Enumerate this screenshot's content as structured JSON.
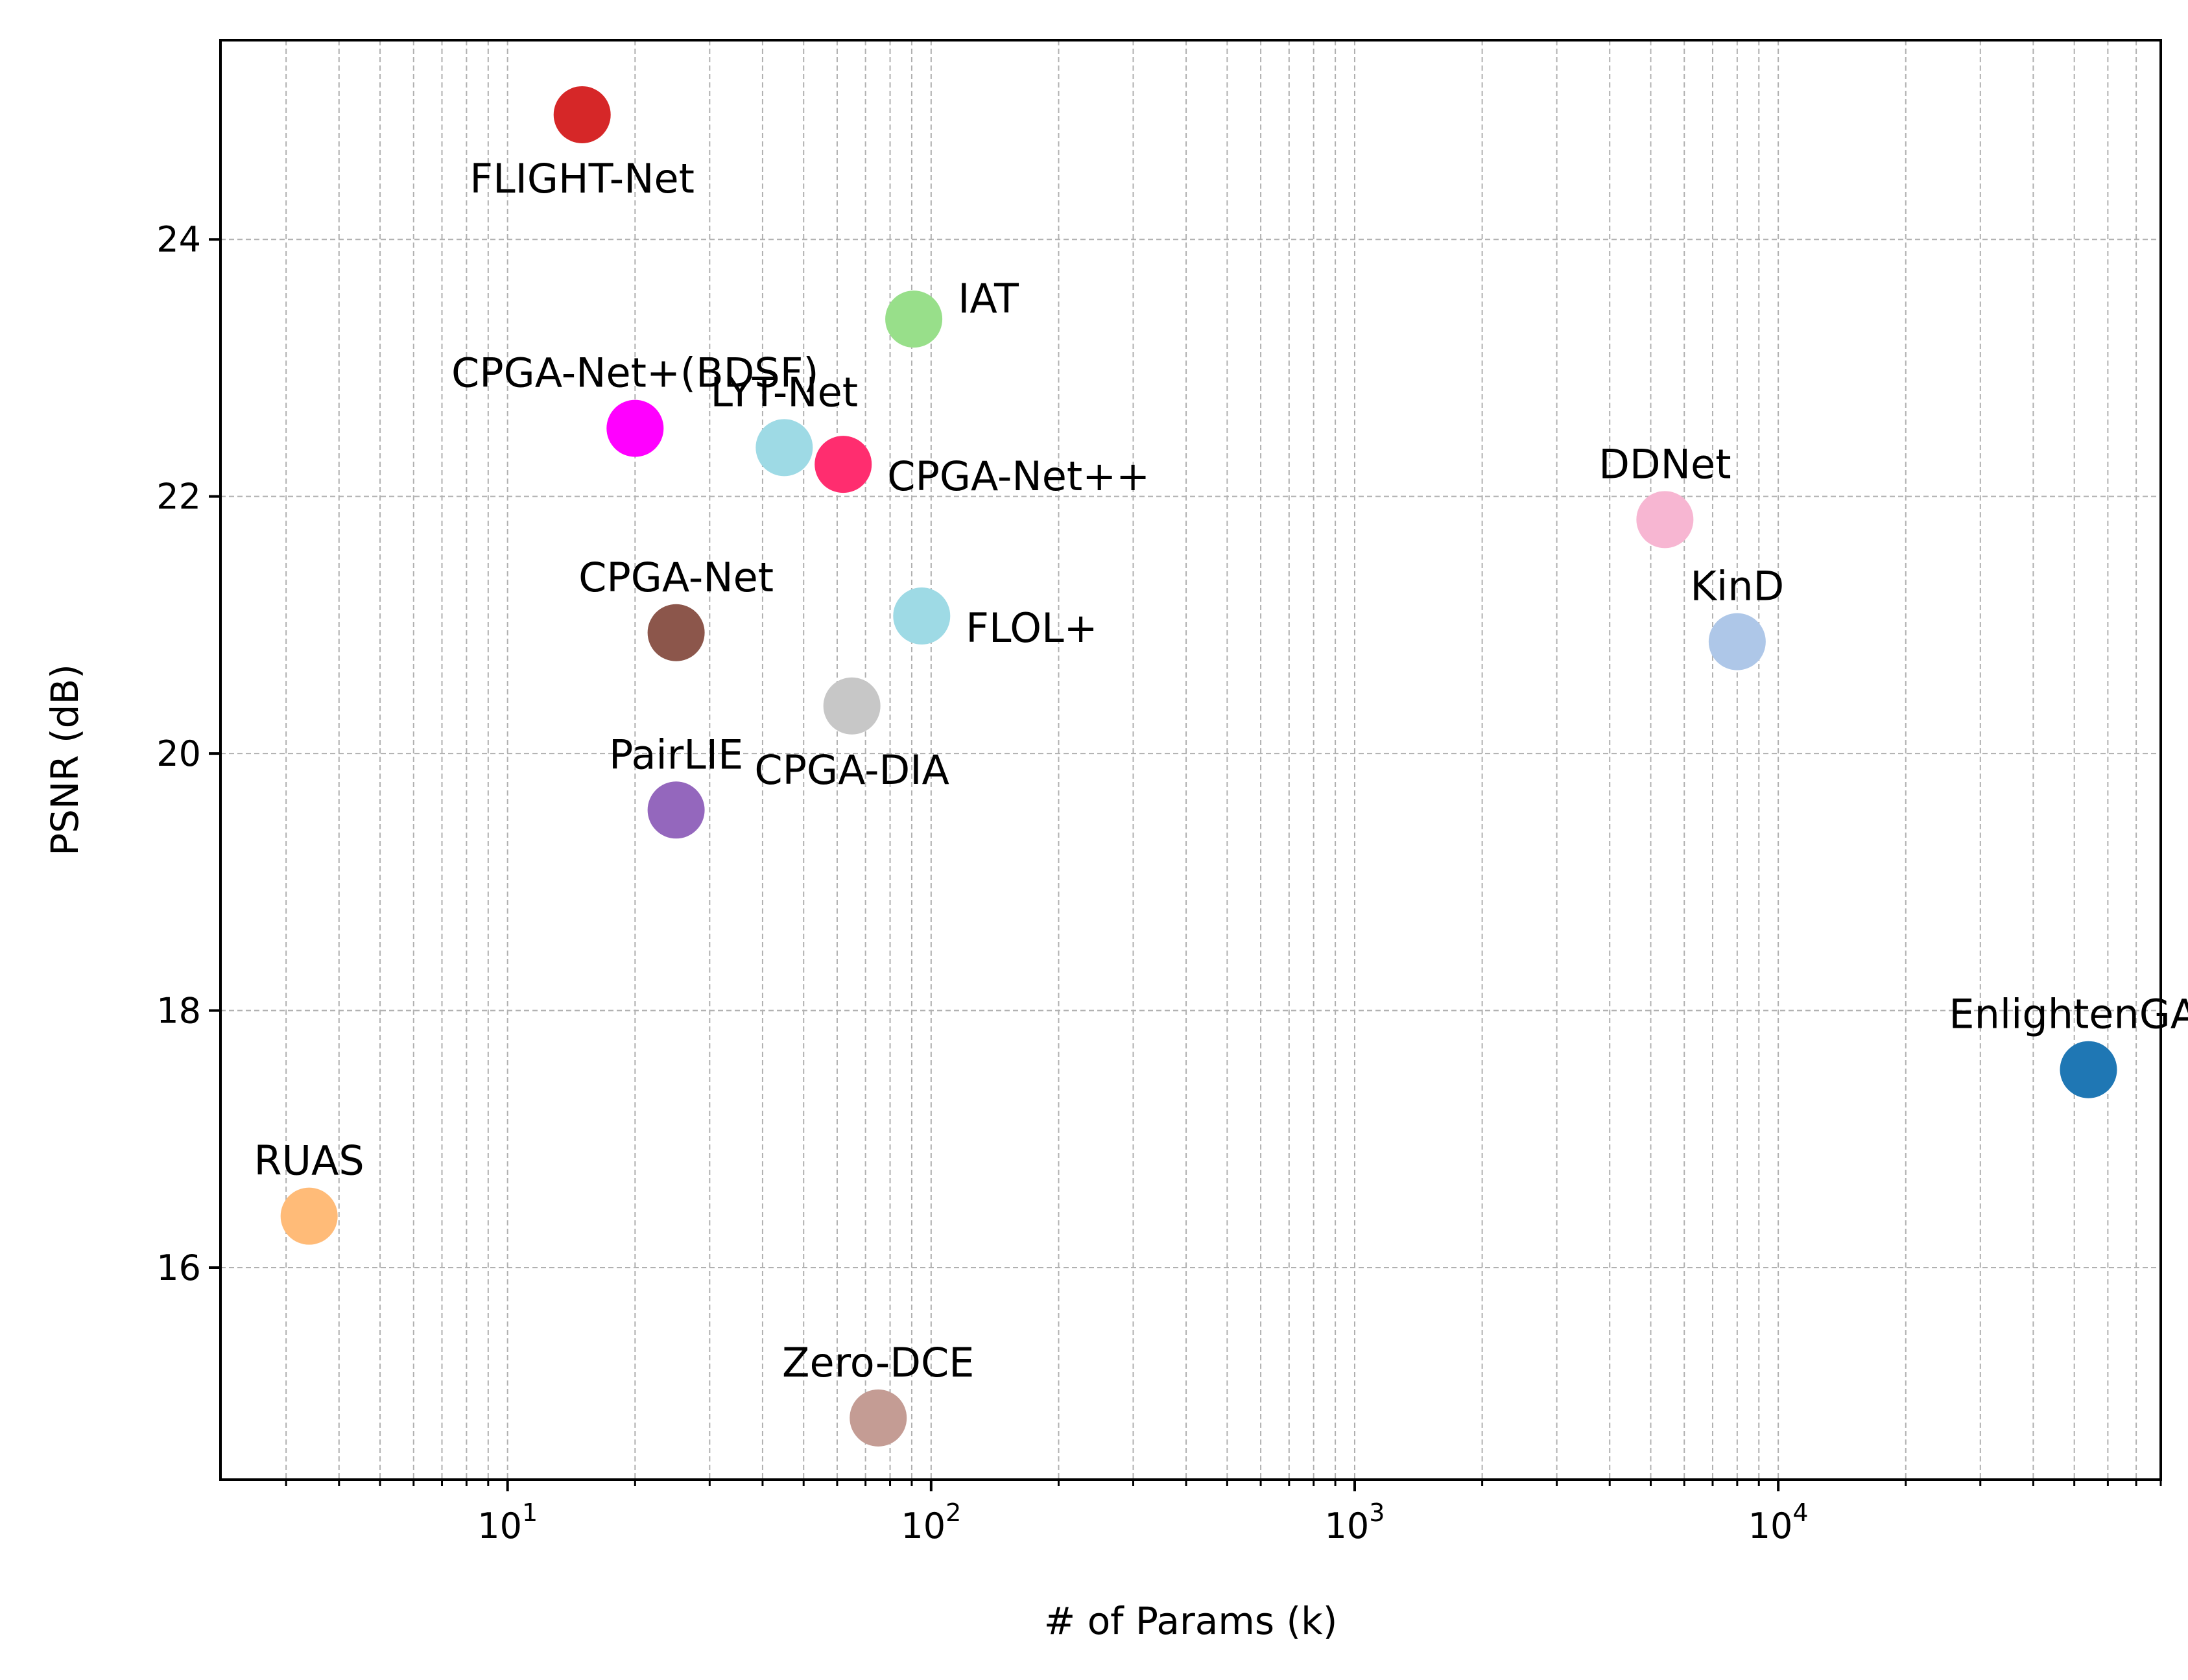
{
  "chart_data": {
    "type": "scatter",
    "title": "",
    "xlabel": "# of Params (k)",
    "ylabel": "PSNR (dB)",
    "xscale": "log",
    "xlim": [
      2.1,
      80000
    ],
    "ylim": [
      14.35,
      25.55
    ],
    "grid": true,
    "x_ticks": [
      {
        "base": "10",
        "exp": "1",
        "value": 10
      },
      {
        "base": "10",
        "exp": "2",
        "value": 100
      },
      {
        "base": "10",
        "exp": "3",
        "value": 1000
      },
      {
        "base": "10",
        "exp": "4",
        "value": 10000
      }
    ],
    "y_ticks": [
      {
        "label": "16",
        "value": 16
      },
      {
        "label": "18",
        "value": 18
      },
      {
        "label": "20",
        "value": 20
      },
      {
        "label": "22",
        "value": 22
      },
      {
        "label": "24",
        "value": 24
      }
    ],
    "points": [
      {
        "label": "FLIGHT-Net",
        "x": 15,
        "y": 24.97,
        "color": "#d62728",
        "label_pos": "below"
      },
      {
        "label": "IAT",
        "x": 91,
        "y": 23.38,
        "color": "#98df8a",
        "label_pos": "right"
      },
      {
        "label": "CPGA-Net+(BDSF)",
        "x": 20,
        "y": 22.53,
        "color": "#ff00ff",
        "label_pos": "above"
      },
      {
        "label": "LYT-Net",
        "x": 45,
        "y": 22.38,
        "color": "#9edae5",
        "label_pos": "above"
      },
      {
        "label": "CPGA-Net++",
        "x": 62,
        "y": 22.25,
        "color": "#ff2d6f",
        "label_pos": "right"
      },
      {
        "label": "DDNet",
        "x": 5400,
        "y": 21.82,
        "color": "#f7b6d2",
        "label_pos": "above"
      },
      {
        "label": "KinD",
        "x": 8000,
        "y": 20.87,
        "color": "#aec7e8",
        "label_pos": "above"
      },
      {
        "label": "CPGA-Net",
        "x": 25,
        "y": 20.94,
        "color": "#8c564b",
        "label_pos": "above"
      },
      {
        "label": "FLOL+",
        "x": 95,
        "y": 21.07,
        "color": "#9edae5",
        "label_pos": "right"
      },
      {
        "label": "CPGA-DIA",
        "x": 65,
        "y": 20.37,
        "color": "#c7c7c7",
        "label_pos": "below"
      },
      {
        "label": "PairLIE",
        "x": 25,
        "y": 19.56,
        "color": "#9467bd",
        "label_pos": "above"
      },
      {
        "label": "EnlightenGAN",
        "x": 54000,
        "y": 17.54,
        "color": "#1f77b4",
        "label_pos": "above"
      },
      {
        "label": "RUAS",
        "x": 3.4,
        "y": 16.4,
        "color": "#ffbb78",
        "label_pos": "above"
      },
      {
        "label": "Zero-DCE",
        "x": 75,
        "y": 14.83,
        "color": "#c49c94",
        "label_pos": "above"
      }
    ]
  }
}
